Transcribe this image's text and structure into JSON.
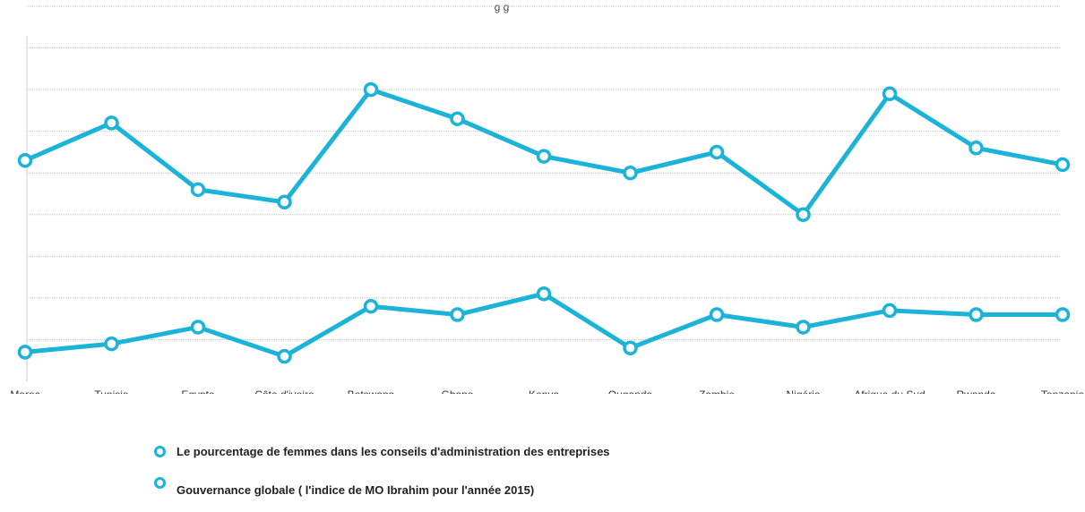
{
  "chart_data": {
    "type": "line",
    "title_fragment": "g  g",
    "categories": [
      "Maroc",
      "Tunisie",
      "Egypte",
      "Côte d'ivoire",
      "Botswana",
      "Ghana",
      "Kenya",
      "Ouganda",
      "Zambie",
      "Nigéria",
      "Afrique du Sud",
      "Rwanda",
      "Tanzanie"
    ],
    "series": [
      {
        "name": "Le pourcentage de femmes dans les conseils d'administration des entreprises",
        "values": [
          0.7,
          0.9,
          1.3,
          0.6,
          1.8,
          1.6,
          2.1,
          0.8,
          1.6,
          1.3,
          1.7,
          1.6,
          1.6
        ]
      },
      {
        "name": "Gouvernance globale ( l'indice de MO Ibrahim pour l'année 2015)",
        "values": [
          5.3,
          6.2,
          4.6,
          4.3,
          7.0,
          6.3,
          5.4,
          5.0,
          5.5,
          4.0,
          6.9,
          5.6,
          5.2
        ]
      }
    ],
    "ylim": [
      0,
      9
    ],
    "grid": true,
    "color": "#1cb3d8",
    "legend_position": "bottom"
  }
}
